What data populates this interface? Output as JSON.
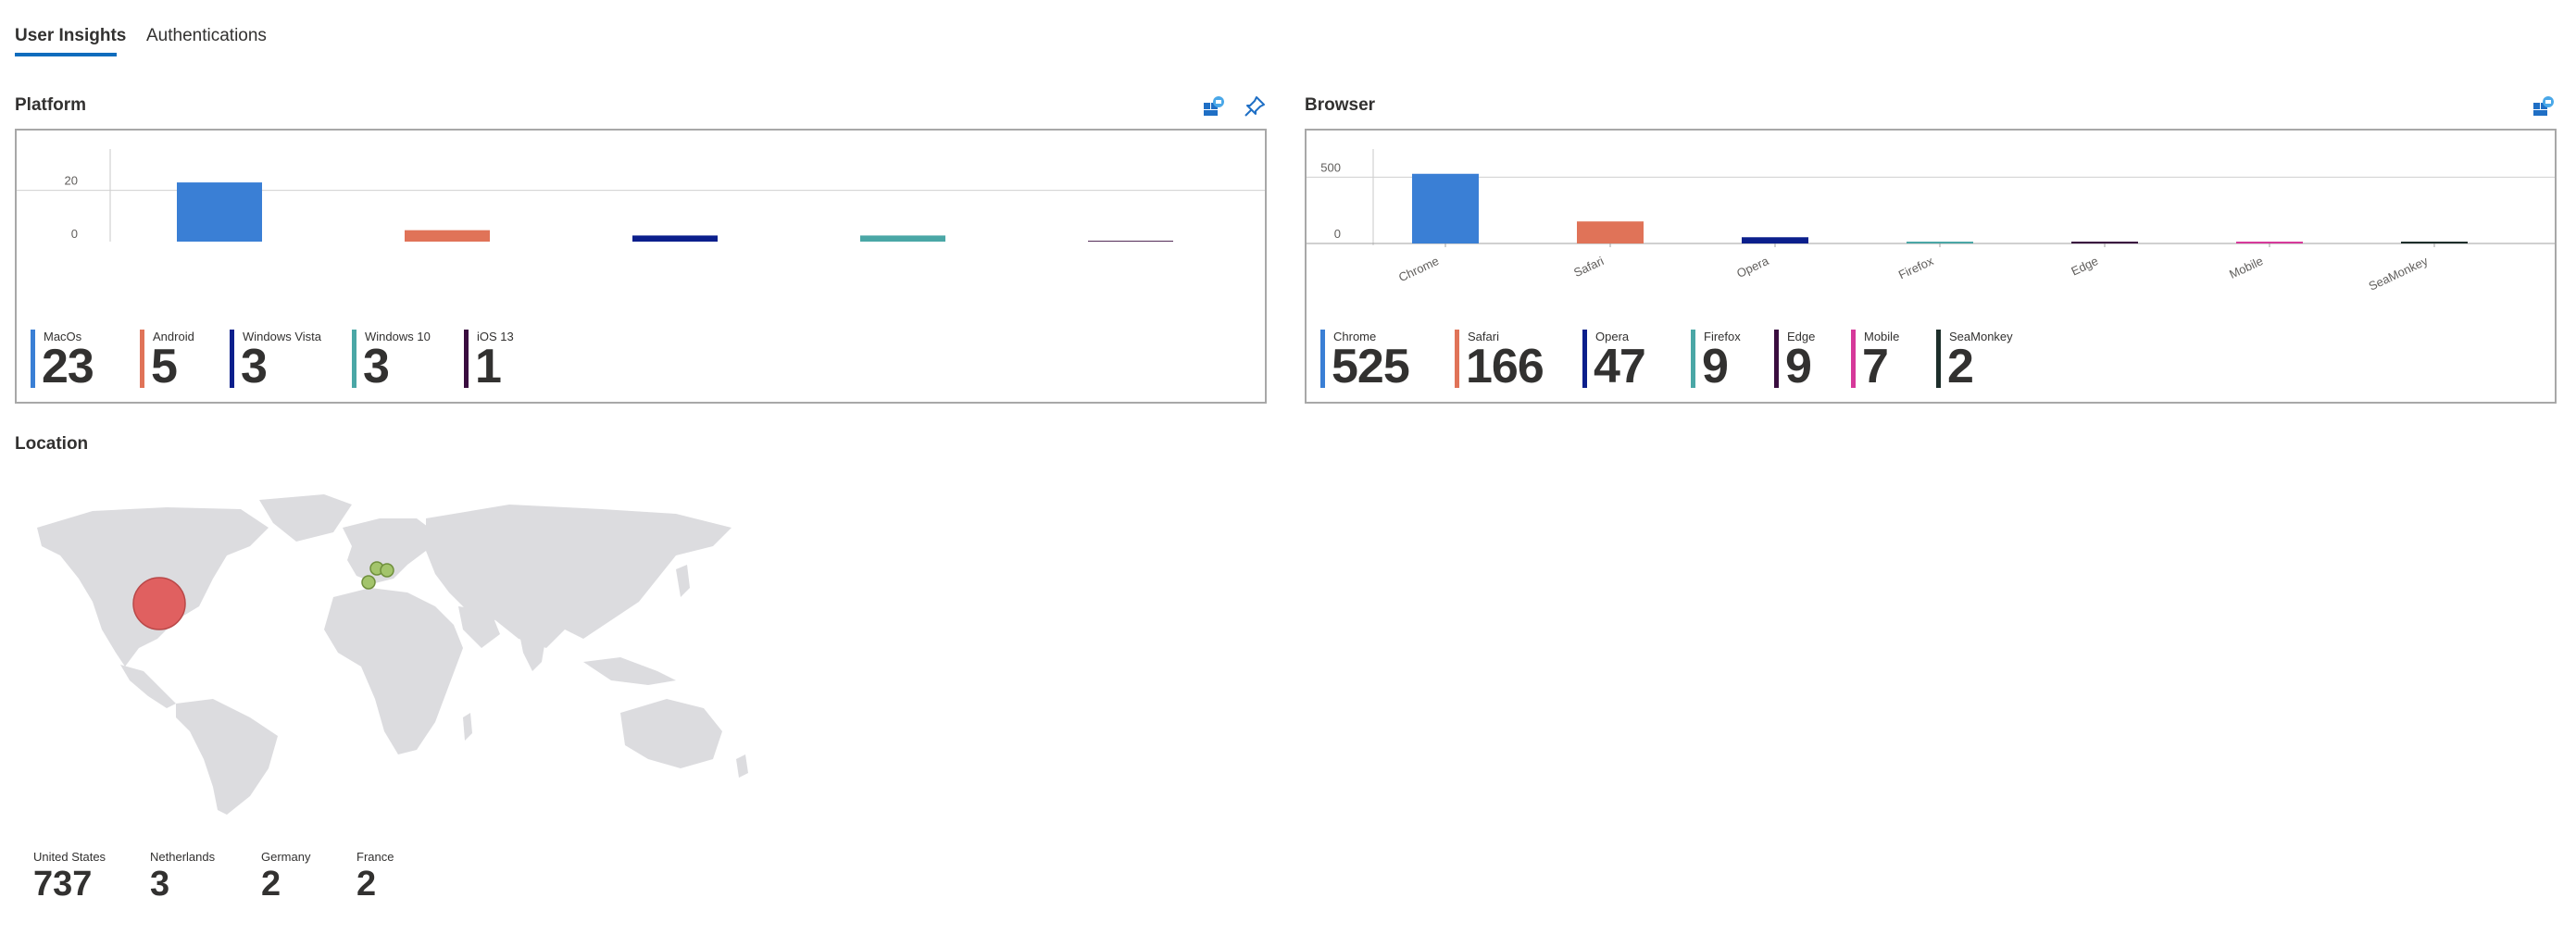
{
  "tabs": [
    {
      "label": "User Insights",
      "active": true
    },
    {
      "label": "Authentications",
      "active": false
    }
  ],
  "platform": {
    "title": "Platform",
    "icons": [
      "workbook-icon",
      "pin-icon"
    ],
    "tiles": [
      {
        "label": "MacOs",
        "value": "23",
        "color": "#3a7fd5"
      },
      {
        "label": "Android",
        "value": "5",
        "color": "#e07358"
      },
      {
        "label": "Windows Vista",
        "value": "3",
        "color": "#0b1f8c"
      },
      {
        "label": "Windows 10",
        "value": "3",
        "color": "#4aa7a6"
      },
      {
        "label": "iOS 13",
        "value": "1",
        "color": "#3a0d3f"
      }
    ]
  },
  "browser": {
    "title": "Browser",
    "icons": [
      "workbook-icon"
    ],
    "tiles": [
      {
        "label": "Chrome",
        "value": "525",
        "color": "#3a7fd5"
      },
      {
        "label": "Safari",
        "value": "166",
        "color": "#e07358"
      },
      {
        "label": "Opera",
        "value": "47",
        "color": "#0b1f8c"
      },
      {
        "label": "Firefox",
        "value": "9",
        "color": "#4aa7a6"
      },
      {
        "label": "Edge",
        "value": "9",
        "color": "#3a0d3f"
      },
      {
        "label": "Mobile",
        "value": "7",
        "color": "#d6399a"
      },
      {
        "label": "SeaMonkey",
        "value": "2",
        "color": "#1d2e2a"
      }
    ]
  },
  "location": {
    "title": "Location",
    "items": [
      {
        "label": "United States",
        "value": "737"
      },
      {
        "label": "Netherlands",
        "value": "3"
      },
      {
        "label": "Germany",
        "value": "2"
      },
      {
        "label": "France",
        "value": "2"
      }
    ]
  },
  "chart_data": [
    {
      "type": "bar",
      "categories": [
        "MacOs",
        "Android",
        "Windows Vista",
        "Windows 10",
        "iOS 13"
      ],
      "visible_tick_labels": [
        "MacOs"
      ],
      "values": [
        23,
        5,
        3,
        3,
        1
      ],
      "colors": [
        "#3a7fd5",
        "#e07358",
        "#0b1f8c",
        "#4aa7a6",
        "#3a0d3f"
      ],
      "y_ticks": [
        "0",
        "20"
      ],
      "ylim": [
        0,
        30
      ],
      "grid": true
    },
    {
      "type": "bar",
      "categories": [
        "Chrome",
        "Safari",
        "Opera",
        "Firefox",
        "Edge",
        "Mobile",
        "SeaMonkey"
      ],
      "visible_tick_labels": [
        "Chrome",
        "Safari",
        "Opera",
        "Firefox",
        "Edge",
        "Mobile",
        "SeaMonkey"
      ],
      "values": [
        525,
        166,
        47,
        9,
        9,
        7,
        2
      ],
      "colors": [
        "#3a7fd5",
        "#e07358",
        "#0b1f8c",
        "#4aa7a6",
        "#3a0d3f",
        "#d6399a",
        "#1d2e2a"
      ],
      "y_ticks": [
        "0",
        "500"
      ],
      "ylim": [
        0,
        600
      ],
      "grid": true
    }
  ]
}
